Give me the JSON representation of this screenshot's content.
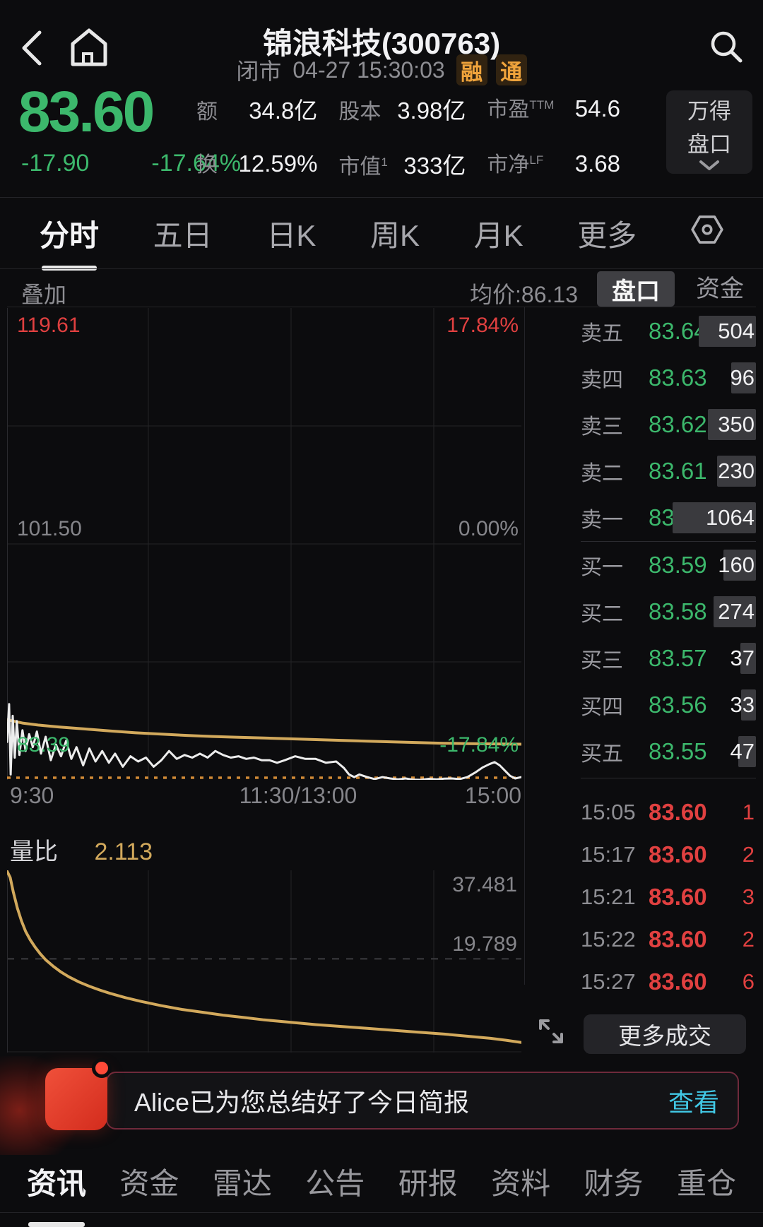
{
  "colors": {
    "green": "#3cb86c",
    "red": "#e04040",
    "gold": "#d2a95c",
    "dotted": "#cf8936",
    "cyan": "#41c7e4",
    "badge_orange": "#f0a43c"
  },
  "header": {
    "title": "锦浪科技(300763)",
    "market_status": "闭市",
    "datetime": "04-27 15:30:03",
    "badges": [
      "融",
      "通"
    ]
  },
  "quote": {
    "price": "83.60",
    "change": "-17.90",
    "change_pct": "-17.64%",
    "stats": [
      {
        "label": "额",
        "sup": "",
        "value": "34.8亿"
      },
      {
        "label": "股本",
        "sup": "",
        "value": "3.98亿"
      },
      {
        "label": "市盈",
        "sup": "TTM",
        "value": "54.6"
      },
      {
        "label": "换",
        "sup": "",
        "value": "12.59%"
      },
      {
        "label": "市值",
        "sup": "1",
        "value": "333亿"
      },
      {
        "label": "市净",
        "sup": "LF",
        "value": "3.68"
      }
    ],
    "wind_button": [
      "万得",
      "盘口"
    ]
  },
  "tabs": {
    "items": [
      "分时",
      "五日",
      "日K",
      "周K",
      "月K",
      "更多"
    ],
    "active": "分时"
  },
  "chart_header": {
    "overlay": "叠加",
    "avg_label": "均价:86.13",
    "panel_tabs": [
      "盘口",
      "资金"
    ],
    "active_panel": "盘口"
  },
  "chart_data": [
    {
      "type": "line",
      "title": "分时走势 (intraday price)",
      "prev_close": 101.5,
      "ylim": [
        83.39,
        119.61
      ],
      "y_left_labels": [
        "119.61",
        "101.50",
        "83.39"
      ],
      "y_right_labels": [
        "17.84%",
        "0.00%",
        "-17.84%"
      ],
      "x_labels": [
        "9:30",
        "11:30/13:00",
        "15:00"
      ],
      "grid": true,
      "series": [
        {
          "name": "price",
          "color": "white",
          "points": [
            [
              0.0,
              86.3
            ],
            [
              0.004,
              89.2
            ],
            [
              0.007,
              83.8
            ],
            [
              0.011,
              88.3
            ],
            [
              0.015,
              85.1
            ],
            [
              0.019,
              87.9
            ],
            [
              0.024,
              85.3
            ],
            [
              0.03,
              87.2
            ],
            [
              0.036,
              85.6
            ],
            [
              0.043,
              86.9
            ],
            [
              0.05,
              85.9
            ],
            [
              0.058,
              87.1
            ],
            [
              0.066,
              85.4
            ],
            [
              0.075,
              86.7
            ],
            [
              0.085,
              84.9
            ],
            [
              0.095,
              86.1
            ],
            [
              0.105,
              85.2
            ],
            [
              0.115,
              86.4
            ],
            [
              0.125,
              85.0
            ],
            [
              0.135,
              85.9
            ],
            [
              0.148,
              84.5
            ],
            [
              0.16,
              85.8
            ],
            [
              0.172,
              84.8
            ],
            [
              0.185,
              85.6
            ],
            [
              0.198,
              84.7
            ],
            [
              0.21,
              85.4
            ],
            [
              0.225,
              84.4
            ],
            [
              0.24,
              85.2
            ],
            [
              0.255,
              84.8
            ],
            [
              0.27,
              85.1
            ],
            [
              0.285,
              84.4
            ],
            [
              0.3,
              84.9
            ],
            [
              0.315,
              85.6
            ],
            [
              0.33,
              85.0
            ],
            [
              0.345,
              85.3
            ],
            [
              0.36,
              85.1
            ],
            [
              0.375,
              85.4
            ],
            [
              0.39,
              85.1
            ],
            [
              0.405,
              85.6
            ],
            [
              0.42,
              85.3
            ],
            [
              0.435,
              85.1
            ],
            [
              0.45,
              85.2
            ],
            [
              0.465,
              85.0
            ],
            [
              0.48,
              85.1
            ],
            [
              0.495,
              84.9
            ],
            [
              0.51,
              84.9
            ],
            [
              0.525,
              84.7
            ],
            [
              0.54,
              84.9
            ],
            [
              0.56,
              85.2
            ],
            [
              0.58,
              85.0
            ],
            [
              0.6,
              85.0
            ],
            [
              0.62,
              84.7
            ],
            [
              0.64,
              84.8
            ],
            [
              0.655,
              84.3
            ],
            [
              0.665,
              83.8
            ],
            [
              0.675,
              83.6
            ],
            [
              0.685,
              83.8
            ],
            [
              0.7,
              83.6
            ],
            [
              0.715,
              83.45
            ],
            [
              0.73,
              83.6
            ],
            [
              0.745,
              83.5
            ],
            [
              0.76,
              83.42
            ],
            [
              0.775,
              83.5
            ],
            [
              0.79,
              83.4
            ],
            [
              0.805,
              83.39
            ],
            [
              0.82,
              83.47
            ],
            [
              0.835,
              83.42
            ],
            [
              0.85,
              83.48
            ],
            [
              0.865,
              83.5
            ],
            [
              0.88,
              83.45
            ],
            [
              0.895,
              83.6
            ],
            [
              0.91,
              83.95
            ],
            [
              0.925,
              84.35
            ],
            [
              0.938,
              84.6
            ],
            [
              0.948,
              84.75
            ],
            [
              0.958,
              84.5
            ],
            [
              0.968,
              84.1
            ],
            [
              0.978,
              83.7
            ],
            [
              0.988,
              83.5
            ],
            [
              1.0,
              83.6
            ]
          ]
        },
        {
          "name": "avg_price",
          "color": "gold",
          "points": [
            [
              0.0,
              88.0
            ],
            [
              0.03,
              87.75
            ],
            [
              0.06,
              87.6
            ],
            [
              0.1,
              87.45
            ],
            [
              0.15,
              87.3
            ],
            [
              0.2,
              87.15
            ],
            [
              0.25,
              87.0
            ],
            [
              0.3,
              86.9
            ],
            [
              0.35,
              86.8
            ],
            [
              0.4,
              86.72
            ],
            [
              0.45,
              86.66
            ],
            [
              0.5,
              86.6
            ],
            [
              0.55,
              86.54
            ],
            [
              0.6,
              86.48
            ],
            [
              0.65,
              86.42
            ],
            [
              0.7,
              86.36
            ],
            [
              0.75,
              86.3
            ],
            [
              0.8,
              86.25
            ],
            [
              0.85,
              86.2
            ],
            [
              0.9,
              86.17
            ],
            [
              0.95,
              86.15
            ],
            [
              1.0,
              86.13
            ]
          ]
        }
      ]
    },
    {
      "type": "line",
      "title": "量比 (volume ratio)",
      "legend_label": "量比",
      "current": "2.113",
      "ylim": [
        0,
        38.5
      ],
      "y_labels": [
        "37.481",
        "19.789"
      ],
      "gridline_value": 19.789,
      "series": [
        {
          "name": "volume_ratio",
          "color": "gold",
          "points": [
            [
              0.0,
              38.3
            ],
            [
              0.006,
              37.0
            ],
            [
              0.012,
              34.0
            ],
            [
              0.02,
              30.5
            ],
            [
              0.028,
              27.8
            ],
            [
              0.036,
              25.6
            ],
            [
              0.045,
              23.8
            ],
            [
              0.055,
              22.2
            ],
            [
              0.065,
              20.8
            ],
            [
              0.075,
              19.6
            ],
            [
              0.09,
              18.2
            ],
            [
              0.105,
              17.0
            ],
            [
              0.12,
              16.0
            ],
            [
              0.14,
              14.9
            ],
            [
              0.16,
              14.0
            ],
            [
              0.18,
              13.2
            ],
            [
              0.2,
              12.5
            ],
            [
              0.23,
              11.6
            ],
            [
              0.26,
              10.8
            ],
            [
              0.3,
              9.9
            ],
            [
              0.34,
              9.1
            ],
            [
              0.38,
              8.5
            ],
            [
              0.42,
              7.9
            ],
            [
              0.46,
              7.4
            ],
            [
              0.5,
              6.9
            ],
            [
              0.55,
              6.4
            ],
            [
              0.6,
              5.9
            ],
            [
              0.65,
              5.5
            ],
            [
              0.7,
              5.1
            ],
            [
              0.75,
              4.7
            ],
            [
              0.8,
              4.3
            ],
            [
              0.85,
              3.9
            ],
            [
              0.9,
              3.4
            ],
            [
              0.94,
              3.0
            ],
            [
              0.97,
              2.6
            ],
            [
              1.0,
              2.113
            ]
          ]
        }
      ]
    }
  ],
  "order_book": {
    "sell": [
      {
        "label": "卖五",
        "price": "83.64",
        "volume": 504
      },
      {
        "label": "卖四",
        "price": "83.63",
        "volume": 96
      },
      {
        "label": "卖三",
        "price": "83.62",
        "volume": 350
      },
      {
        "label": "卖二",
        "price": "83.61",
        "volume": 230
      },
      {
        "label": "卖一",
        "price": "83.60",
        "volume": 1064
      }
    ],
    "buy": [
      {
        "label": "买一",
        "price": "83.59",
        "volume": 160
      },
      {
        "label": "买二",
        "price": "83.58",
        "volume": 274
      },
      {
        "label": "买三",
        "price": "83.57",
        "volume": 37
      },
      {
        "label": "买四",
        "price": "83.56",
        "volume": 33
      },
      {
        "label": "买五",
        "price": "83.55",
        "volume": 47
      }
    ]
  },
  "trades": [
    {
      "time": "15:05",
      "price": "83.60",
      "volume": "1"
    },
    {
      "time": "15:17",
      "price": "83.60",
      "volume": "2"
    },
    {
      "time": "15:21",
      "price": "83.60",
      "volume": "3"
    },
    {
      "time": "15:22",
      "price": "83.60",
      "volume": "2"
    },
    {
      "time": "15:27",
      "price": "83.60",
      "volume": "6"
    }
  ],
  "more_trades_label": "更多成交",
  "alice_banner": {
    "text": "Alice已为您总结好了今日简报",
    "action": "查看"
  },
  "bottom_nav": {
    "items": [
      "资讯",
      "资金",
      "雷达",
      "公告",
      "研报",
      "资料",
      "财务",
      "重仓"
    ],
    "active": "资讯"
  }
}
